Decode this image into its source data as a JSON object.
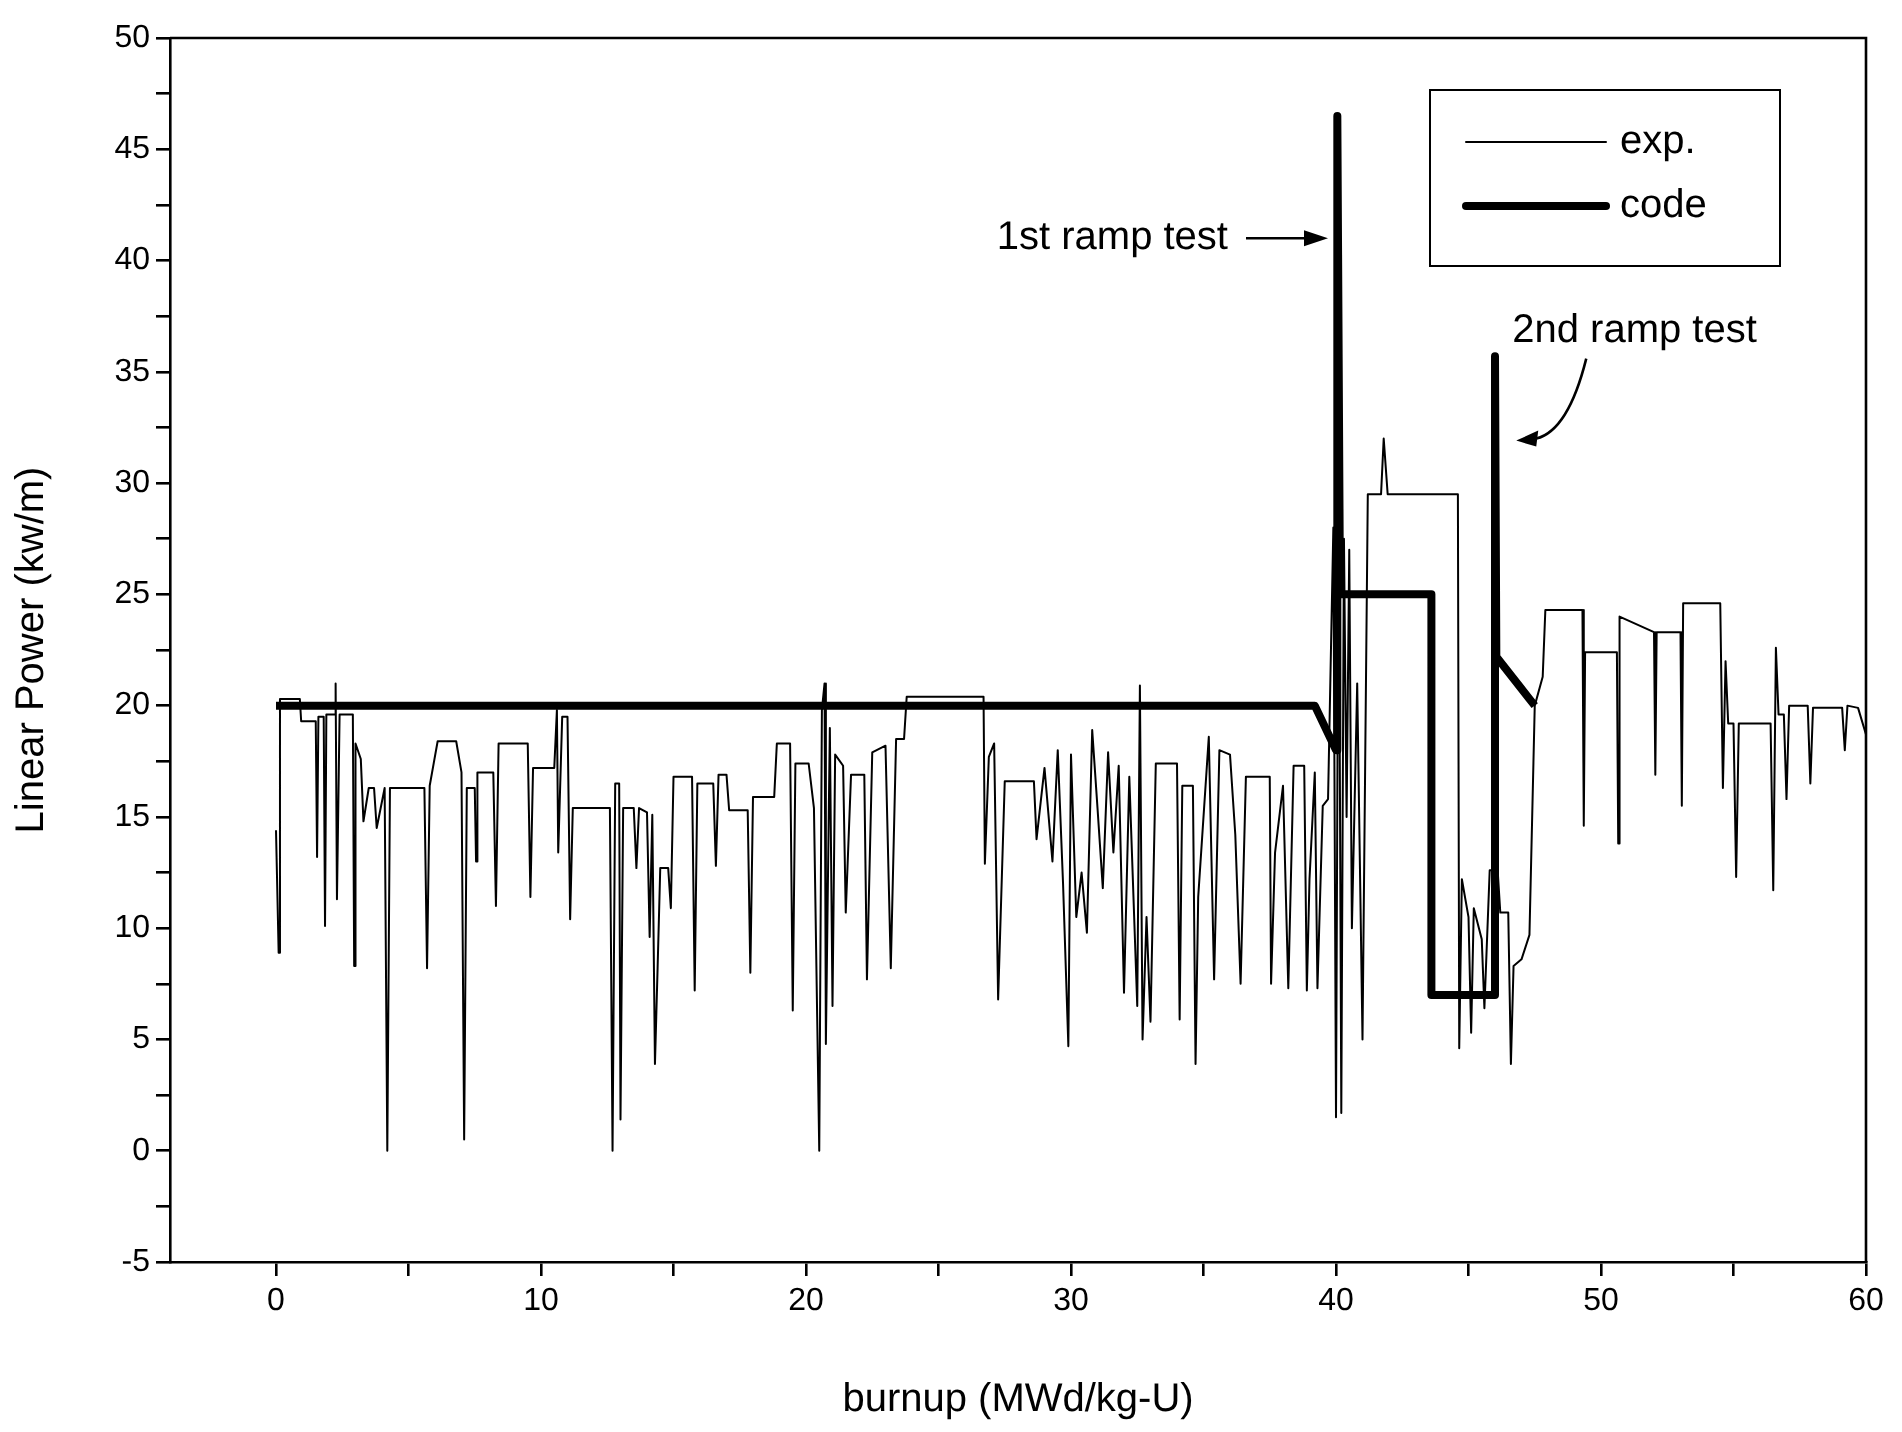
{
  "chart_data": {
    "type": "line",
    "xlabel": "burnup (MWd/kg-U)",
    "ylabel": "Linear Power (kw/m)",
    "xlim": [
      -4,
      60
    ],
    "xticks": [
      0,
      {
        "value": 5,
        "label": null
      },
      10,
      {
        "value": 15,
        "label": null
      },
      20,
      {
        "value": 25,
        "label": null
      },
      30,
      {
        "value": 35,
        "label": null
      },
      40,
      {
        "value": 45,
        "label": null
      },
      50,
      {
        "value": 55,
        "label": null
      },
      60
    ],
    "ylim": [
      -5,
      50
    ],
    "yticks": [
      -5,
      {
        "value": -2.5,
        "label": null
      },
      0,
      {
        "value": 2.5,
        "label": null
      },
      5,
      {
        "value": 7.5,
        "label": null
      },
      10,
      {
        "value": 12.5,
        "label": null
      },
      15,
      {
        "value": 17.5,
        "label": null
      },
      20,
      {
        "value": 22.5,
        "label": null
      },
      25,
      {
        "value": 27.5,
        "label": null
      },
      30,
      {
        "value": 32.5,
        "label": null
      },
      35,
      {
        "value": 37.5,
        "label": null
      },
      40,
      {
        "value": 42.5,
        "label": null
      },
      45,
      {
        "value": 47.5,
        "label": null
      },
      50
    ],
    "grid": false,
    "legend": "top right",
    "marker": "none",
    "line_style": "solid",
    "series": [
      {
        "name": "exp.",
        "color": "#000000",
        "x": [
          0,
          0.1,
          0.15,
          0.9,
          0.95,
          1.5,
          1.55,
          1.6,
          1.8,
          1.85,
          1.9,
          2.2,
          2.25,
          2.3,
          2.4,
          2.9,
          2.95,
          3.0,
          3.2,
          3.3,
          3.5,
          3.7,
          3.8,
          4.1,
          4.2,
          4.3,
          5.6,
          5.7,
          5.8,
          6.1,
          6.8,
          7.0,
          7.1,
          7.2,
          7.5,
          7.55,
          7.6,
          8.2,
          8.3,
          8.4,
          9.5,
          9.6,
          9.7,
          10.5,
          10.6,
          10.65,
          10.8,
          11.0,
          11.1,
          11.2,
          12.6,
          12.7,
          12.8,
          12.95,
          13.0,
          13.1,
          13.5,
          13.6,
          13.7,
          14.0,
          14.1,
          14.2,
          14.3,
          14.4,
          14.5,
          14.8,
          14.9,
          15.0,
          15.7,
          15.8,
          15.9,
          16.5,
          16.6,
          16.7,
          17.0,
          17.1,
          17.8,
          17.9,
          18.0,
          18.8,
          18.9,
          19.4,
          19.5,
          19.6,
          20.1,
          20.3,
          20.5,
          20.6,
          20.7,
          20.75,
          20.9,
          21.0,
          21.1,
          21.4,
          21.5,
          21.7,
          22.2,
          22.3,
          22.5,
          23.0,
          23.2,
          23.4,
          23.7,
          23.8,
          26.7,
          26.75,
          26.9,
          27.1,
          27.25,
          27.5,
          28.6,
          28.7,
          29.0,
          29.3,
          29.5,
          29.7,
          29.9,
          30.0,
          30.2,
          30.4,
          30.6,
          30.8,
          31.0,
          31.2,
          31.4,
          31.6,
          31.8,
          32.0,
          32.2,
          32.5,
          32.6,
          32.7,
          32.85,
          33.0,
          33.2,
          34.0,
          34.1,
          34.2,
          34.6,
          34.7,
          34.8,
          35.2,
          35.4,
          35.6,
          36.0,
          36.2,
          36.4,
          36.6,
          37.5,
          37.55,
          37.7,
          38.0,
          38.2,
          38.4,
          38.8,
          38.9,
          39.0,
          39.2,
          39.3,
          39.5,
          39.7,
          39.9,
          40.0,
          40.1,
          40.2,
          40.3,
          40.4,
          40.5,
          40.6,
          40.8,
          41.0,
          41.2,
          41.7,
          41.8,
          41.95,
          44.6,
          44.65,
          44.75,
          45.0,
          45.1,
          45.2,
          45.5,
          45.6,
          45.8,
          46.1,
          46.2,
          46.5,
          46.6,
          46.7,
          47.0,
          47.3,
          47.5,
          47.8,
          47.9,
          49.3,
          49.35,
          49.4,
          50.6,
          50.65,
          50.7,
          52.0,
          52.05,
          52.1,
          53.0,
          53.05,
          53.1,
          54.5,
          54.6,
          54.7,
          54.8,
          55.0,
          55.1,
          55.2,
          56.4,
          56.5,
          56.6,
          56.7,
          56.9,
          57.0,
          57.1,
          57.8,
          57.9,
          58.0,
          59.1,
          59.2,
          59.3,
          59.7,
          60.0
        ],
        "values": [
          14.4,
          8.9,
          20.3,
          20.3,
          19.3,
          19.3,
          13.2,
          19.5,
          19.5,
          10.1,
          19.6,
          19.6,
          21,
          11.3,
          19.6,
          19.6,
          8.3,
          18.3,
          17.6,
          14.8,
          16.3,
          16.3,
          14.5,
          16.3,
          0,
          16.3,
          16.3,
          8.2,
          16.4,
          18.4,
          18.4,
          17,
          0.5,
          16.3,
          16.3,
          13,
          17,
          17,
          11,
          18.3,
          18.3,
          11.4,
          17.2,
          17.2,
          19.8,
          13.4,
          19.5,
          19.5,
          10.4,
          15.4,
          15.4,
          0,
          16.5,
          16.5,
          1.4,
          15.4,
          15.4,
          12.7,
          15.4,
          15.2,
          9.6,
          15.1,
          3.9,
          8.2,
          12.7,
          12.7,
          10.9,
          16.8,
          16.8,
          7.2,
          16.5,
          16.5,
          12.8,
          16.9,
          16.9,
          15.3,
          15.3,
          8,
          15.9,
          15.9,
          18.3,
          18.3,
          6.3,
          17.4,
          17.4,
          15.4,
          0,
          19.8,
          21,
          4.8,
          19,
          6.5,
          17.8,
          17.3,
          10.7,
          16.9,
          16.9,
          7.7,
          17.9,
          18.2,
          8.2,
          18.5,
          18.5,
          20.4,
          20.4,
          12.9,
          17.7,
          18.3,
          6.8,
          16.6,
          16.6,
          14,
          17.2,
          13,
          18,
          12,
          4.7,
          17.8,
          10.5,
          12.5,
          9.8,
          18.9,
          15.4,
          11.8,
          17.9,
          13.4,
          17.3,
          7.1,
          16.8,
          6.5,
          20.9,
          5,
          10.5,
          5.8,
          17.4,
          17.4,
          5.9,
          16.4,
          16.4,
          3.9,
          11.4,
          18.6,
          7.7,
          18,
          17.8,
          14.2,
          7.5,
          16.8,
          16.8,
          7.5,
          13.4,
          16.4,
          7.3,
          17.3,
          17.3,
          7.2,
          12.2,
          17,
          7.3,
          15.5,
          15.8,
          28,
          1.5,
          30,
          1.7,
          27.5,
          15,
          27,
          10,
          21,
          5,
          29.5,
          29.5,
          32,
          29.5,
          29.5,
          4.6,
          12.2,
          10.5,
          5.3,
          10.9,
          9.5,
          6.4,
          12.6,
          12.6,
          10.7,
          10.7,
          3.9,
          8.3,
          8.6,
          9.7,
          20,
          21.3,
          24.3,
          24.3,
          14.6,
          22.4,
          22.4,
          13.8,
          24,
          23.3,
          16.9,
          23.3,
          23.3,
          15.5,
          24.6,
          24.6,
          16.3,
          22,
          19.2,
          19.2,
          12.3,
          19.2,
          19.2,
          11.7,
          22.6,
          19.6,
          19.6,
          15.8,
          20,
          20,
          16.5,
          19.9,
          19.9,
          18,
          20,
          19.9,
          18.7
        ]
      },
      {
        "name": "code",
        "color": "#000000",
        "x": [
          0,
          39.2,
          40.0,
          40.05,
          40.15,
          43.6,
          43.6,
          46.0,
          46.0,
          46.05,
          47.5
        ],
        "values": [
          20,
          20,
          18,
          46.5,
          25,
          25,
          7,
          7,
          35.7,
          22.2,
          20
        ]
      }
    ],
    "annotations": [
      {
        "text": "1st ramp test",
        "x": 40,
        "y": 41
      },
      {
        "text": "2nd ramp test",
        "x": 46.5,
        "y": 32
      }
    ]
  }
}
